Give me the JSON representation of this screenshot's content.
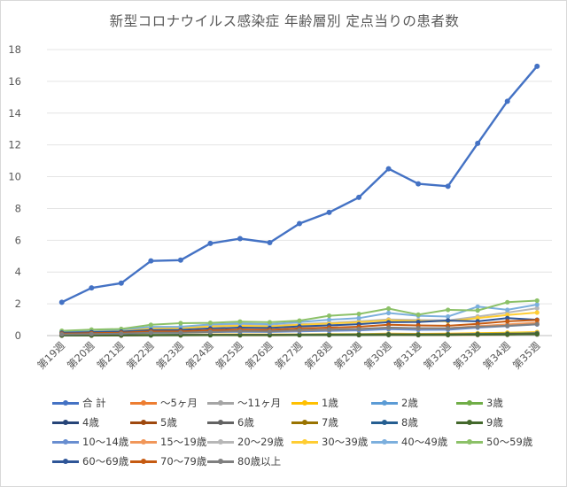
{
  "chart_data": {
    "type": "line",
    "title": "新型コロナウイルス感染症 年齢層別 定点当りの患者数",
    "xlabel": "",
    "ylabel": "",
    "ylim": [
      0,
      18
    ],
    "yticks": [
      0,
      2,
      4,
      6,
      8,
      10,
      12,
      14,
      16,
      18
    ],
    "grid": "horizontal",
    "legend_position": "bottom",
    "categories": [
      "第19週",
      "第20週",
      "第21週",
      "第22週",
      "第23週",
      "第24週",
      "第25週",
      "第26週",
      "第27週",
      "第28週",
      "第29週",
      "第30週",
      "第31週",
      "第32週",
      "第33週",
      "第34週",
      "第35週"
    ],
    "series": [
      {
        "name": "合 計",
        "color": "#4472c4",
        "values": [
          2.1,
          3.0,
          3.3,
          4.7,
          4.75,
          5.8,
          6.1,
          5.85,
          7.05,
          7.75,
          8.7,
          10.5,
          9.55,
          9.4,
          12.1,
          14.75,
          16.95
        ]
      },
      {
        "name": "〜5ヶ月",
        "color": "#ed7d31",
        "values": [
          0.0,
          0.0,
          0.0,
          0.02,
          0.02,
          0.03,
          0.02,
          0.02,
          0.03,
          0.03,
          0.03,
          0.04,
          0.03,
          0.03,
          0.04,
          0.05,
          0.06
        ]
      },
      {
        "name": "〜11ヶ月",
        "color": "#a5a5a5",
        "values": [
          0.0,
          0.01,
          0.01,
          0.02,
          0.02,
          0.02,
          0.02,
          0.02,
          0.03,
          0.03,
          0.03,
          0.04,
          0.04,
          0.04,
          0.05,
          0.05,
          0.06
        ]
      },
      {
        "name": "1歳",
        "color": "#ffc000",
        "values": [
          0.03,
          0.04,
          0.05,
          0.06,
          0.06,
          0.07,
          0.08,
          0.07,
          0.08,
          0.1,
          0.1,
          0.12,
          0.11,
          0.12,
          0.15,
          0.18,
          0.22
        ]
      },
      {
        "name": "2歳",
        "color": "#5b9bd5",
        "values": [
          0.02,
          0.03,
          0.03,
          0.04,
          0.04,
          0.05,
          0.05,
          0.05,
          0.06,
          0.07,
          0.07,
          0.09,
          0.08,
          0.08,
          0.11,
          0.13,
          0.16
        ]
      },
      {
        "name": "3歳",
        "color": "#70ad47",
        "values": [
          0.02,
          0.03,
          0.03,
          0.04,
          0.04,
          0.04,
          0.05,
          0.05,
          0.05,
          0.06,
          0.07,
          0.08,
          0.07,
          0.08,
          0.1,
          0.12,
          0.14
        ]
      },
      {
        "name": "4歳",
        "color": "#264478",
        "values": [
          0.02,
          0.02,
          0.03,
          0.03,
          0.04,
          0.04,
          0.04,
          0.04,
          0.05,
          0.05,
          0.06,
          0.07,
          0.06,
          0.07,
          0.09,
          0.1,
          0.13
        ]
      },
      {
        "name": "5歳",
        "color": "#9e480e",
        "values": [
          0.02,
          0.02,
          0.02,
          0.03,
          0.03,
          0.04,
          0.04,
          0.04,
          0.05,
          0.05,
          0.05,
          0.06,
          0.06,
          0.06,
          0.08,
          0.1,
          0.12
        ]
      },
      {
        "name": "6歳",
        "color": "#636363",
        "values": [
          0.02,
          0.02,
          0.02,
          0.03,
          0.03,
          0.03,
          0.04,
          0.04,
          0.04,
          0.05,
          0.05,
          0.06,
          0.05,
          0.06,
          0.07,
          0.09,
          0.11
        ]
      },
      {
        "name": "7歳",
        "color": "#997300",
        "values": [
          0.01,
          0.02,
          0.02,
          0.03,
          0.03,
          0.03,
          0.03,
          0.03,
          0.04,
          0.04,
          0.05,
          0.05,
          0.05,
          0.05,
          0.07,
          0.08,
          0.1
        ]
      },
      {
        "name": "8歳",
        "color": "#255e91",
        "values": [
          0.01,
          0.02,
          0.02,
          0.02,
          0.03,
          0.03,
          0.03,
          0.03,
          0.04,
          0.04,
          0.04,
          0.05,
          0.05,
          0.05,
          0.06,
          0.08,
          0.1
        ]
      },
      {
        "name": "9歳",
        "color": "#43682b",
        "values": [
          0.01,
          0.01,
          0.02,
          0.02,
          0.02,
          0.03,
          0.03,
          0.03,
          0.03,
          0.04,
          0.04,
          0.05,
          0.04,
          0.05,
          0.06,
          0.07,
          0.09
        ]
      },
      {
        "name": "10〜14歳",
        "color": "#698ed0",
        "values": [
          0.1,
          0.12,
          0.13,
          0.18,
          0.18,
          0.22,
          0.24,
          0.23,
          0.27,
          0.3,
          0.33,
          0.4,
          0.36,
          0.37,
          0.5,
          0.6,
          0.7
        ]
      },
      {
        "name": "15〜19歳",
        "color": "#f1975a",
        "values": [
          0.1,
          0.14,
          0.15,
          0.22,
          0.22,
          0.28,
          0.3,
          0.29,
          0.33,
          0.38,
          0.42,
          0.5,
          0.46,
          0.46,
          0.6,
          0.7,
          0.82
        ]
      },
      {
        "name": "20〜29歳",
        "color": "#b7b7b7",
        "values": [
          0.22,
          0.3,
          0.34,
          0.5,
          0.5,
          0.62,
          0.66,
          0.62,
          0.72,
          0.8,
          0.9,
          1.02,
          0.98,
          0.96,
          1.2,
          1.45,
          1.72
        ]
      },
      {
        "name": "30〜39歳",
        "color": "#ffcd33",
        "values": [
          0.2,
          0.28,
          0.32,
          0.46,
          0.47,
          0.58,
          0.62,
          0.58,
          0.68,
          0.75,
          0.84,
          0.96,
          0.92,
          0.9,
          1.1,
          1.3,
          1.45
        ]
      },
      {
        "name": "40〜49歳",
        "color": "#7cafdd",
        "values": [
          0.25,
          0.34,
          0.38,
          0.55,
          0.56,
          0.7,
          0.76,
          0.72,
          0.85,
          1.0,
          1.1,
          1.42,
          1.25,
          1.2,
          1.82,
          1.62,
          1.95
        ]
      },
      {
        "name": "50〜59歳",
        "color": "#8cc168",
        "values": [
          0.3,
          0.38,
          0.42,
          0.68,
          0.78,
          0.8,
          0.88,
          0.84,
          0.94,
          1.25,
          1.36,
          1.7,
          1.32,
          1.62,
          1.58,
          2.1,
          2.2
        ]
      },
      {
        "name": "60〜69歳",
        "color": "#2e5597",
        "values": [
          0.18,
          0.22,
          0.25,
          0.35,
          0.36,
          0.45,
          0.5,
          0.48,
          0.58,
          0.64,
          0.72,
          0.84,
          0.86,
          0.95,
          0.9,
          1.1,
          1.0
        ]
      },
      {
        "name": "70〜79歳",
        "color": "#c55a11",
        "values": [
          0.12,
          0.15,
          0.18,
          0.26,
          0.26,
          0.34,
          0.38,
          0.36,
          0.45,
          0.5,
          0.56,
          0.68,
          0.64,
          0.62,
          0.74,
          0.9,
          0.98
        ]
      },
      {
        "name": "80歳以上",
        "color": "#7f7f7f",
        "values": [
          0.08,
          0.1,
          0.12,
          0.18,
          0.18,
          0.24,
          0.28,
          0.27,
          0.34,
          0.38,
          0.42,
          0.5,
          0.47,
          0.46,
          0.55,
          0.62,
          0.72
        ]
      }
    ]
  }
}
